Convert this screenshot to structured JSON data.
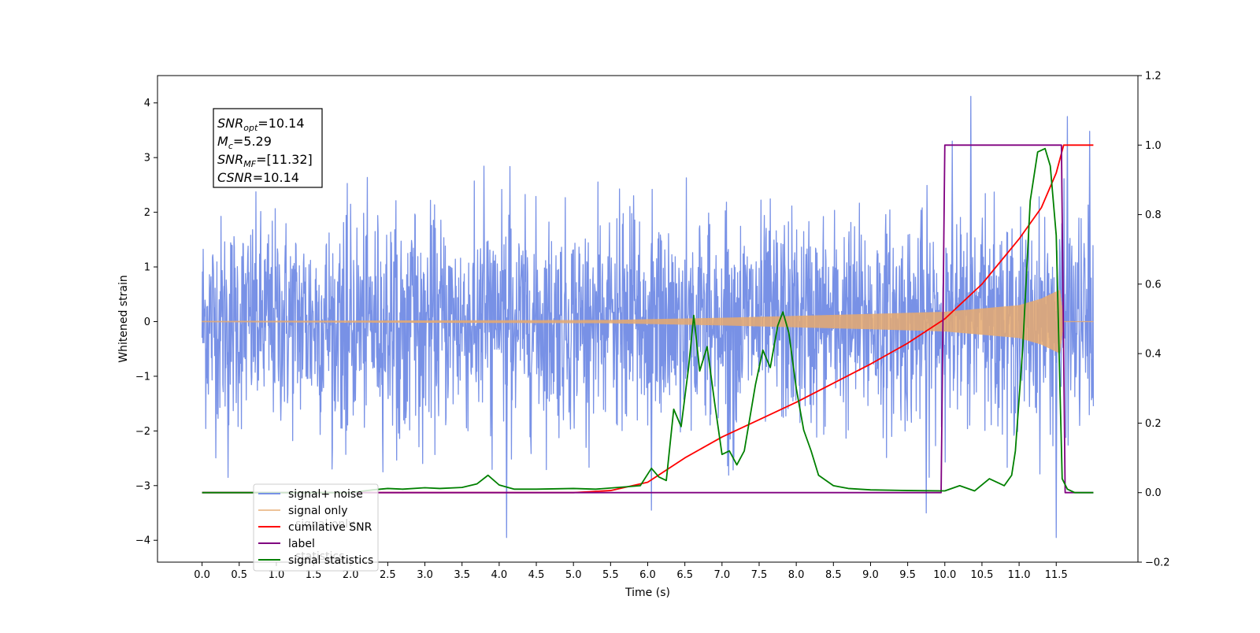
{
  "chart_data": {
    "type": "line",
    "xlabel": "Time (s)",
    "ylabel_left": "Whitened strain",
    "ylabel_right": "",
    "xlim": [
      -0.6,
      12.6
    ],
    "ylim_left": [
      -4.4,
      4.5
    ],
    "ylim_right": [
      -0.2,
      1.2
    ],
    "x_ticks": [
      "0.0",
      "0.5",
      "1.0",
      "1.5",
      "2.0",
      "2.5",
      "3.0",
      "3.5",
      "4.0",
      "4.5",
      "5.0",
      "5.5",
      "6.0",
      "6.5",
      "7.0",
      "7.5",
      "8.0",
      "8.5",
      "9.0",
      "9.5",
      "10.0",
      "10.5",
      "11.0",
      "11.5"
    ],
    "y_ticks_left": [
      "−4",
      "−3",
      "−2",
      "−1",
      "0",
      "1",
      "2",
      "3",
      "4"
    ],
    "y_ticks_right": [
      "−0.2",
      "0.0",
      "0.2",
      "0.4",
      "0.6",
      "0.8",
      "1.0",
      "1.2"
    ],
    "grid": false,
    "legend_position": "lower-left",
    "series": [
      {
        "name": "signal+ noise",
        "axis": "left",
        "color": "#7891e6",
        "style": "noise",
        "x_range": [
          0.0,
          12.0
        ],
        "typical_abs_max": 2.5,
        "outliers": [
          {
            "x": 0.35,
            "y": -2.85
          },
          {
            "x": 4.1,
            "y": -3.95
          },
          {
            "x": 6.05,
            "y": -3.45
          },
          {
            "x": 9.75,
            "y": -3.5
          },
          {
            "x": 10.35,
            "y": 4.12
          },
          {
            "x": 11.5,
            "y": -3.95
          },
          {
            "x": 11.65,
            "y": 3.75
          },
          {
            "x": 11.95,
            "y": 3.48
          },
          {
            "x": 10.1,
            "y": 3.3
          }
        ]
      },
      {
        "name": "signal only",
        "axis": "left",
        "color": "#e6a96e",
        "style": "chirp",
        "x_range": [
          0.0,
          12.0
        ],
        "merger_time": 11.55,
        "envelope": [
          [
            0.0,
            0.01
          ],
          [
            5.5,
            0.03
          ],
          [
            7.0,
            0.07
          ],
          [
            9.0,
            0.14
          ],
          [
            10.0,
            0.18
          ],
          [
            11.0,
            0.3
          ],
          [
            11.3,
            0.42
          ],
          [
            11.5,
            0.55
          ],
          [
            11.55,
            0.58
          ],
          [
            11.6,
            0.0
          ],
          [
            12.0,
            0.0
          ]
        ]
      },
      {
        "name": "cumilative SNR",
        "axis": "right",
        "color": "#ff0000",
        "x": [
          0.0,
          5.0,
          5.5,
          6.0,
          6.5,
          7.0,
          7.5,
          8.0,
          8.5,
          9.0,
          9.5,
          10.0,
          10.5,
          11.0,
          11.3,
          11.5,
          11.6,
          12.0
        ],
        "values": [
          0.0,
          0.0,
          0.006,
          0.03,
          0.1,
          0.16,
          0.21,
          0.26,
          0.315,
          0.37,
          0.43,
          0.5,
          0.6,
          0.73,
          0.82,
          0.92,
          1.0,
          1.0
        ]
      },
      {
        "name": "label",
        "axis": "right",
        "color": "#800080",
        "x": [
          0.0,
          9.95,
          10.0,
          11.57,
          11.62,
          12.0
        ],
        "values": [
          0.0,
          0.0,
          1.0,
          1.0,
          0.0,
          0.0
        ]
      },
      {
        "name": "signal statistics",
        "axis": "right",
        "color": "#008000",
        "x": [
          0.0,
          2.0,
          2.3,
          2.5,
          2.7,
          3.0,
          3.2,
          3.5,
          3.7,
          3.85,
          4.0,
          4.2,
          4.5,
          5.0,
          5.3,
          5.6,
          5.9,
          6.05,
          6.15,
          6.25,
          6.35,
          6.45,
          6.55,
          6.62,
          6.7,
          6.8,
          6.9,
          7.0,
          7.1,
          7.2,
          7.3,
          7.45,
          7.55,
          7.65,
          7.75,
          7.82,
          7.9,
          8.0,
          8.1,
          8.2,
          8.3,
          8.5,
          8.7,
          9.0,
          9.5,
          10.0,
          10.2,
          10.4,
          10.6,
          10.8,
          10.9,
          10.95,
          11.05,
          11.15,
          11.25,
          11.35,
          11.42,
          11.5,
          11.58,
          11.65,
          11.75,
          12.0
        ],
        "values": [
          0.0,
          0.0,
          0.008,
          0.012,
          0.01,
          0.014,
          0.012,
          0.015,
          0.025,
          0.05,
          0.022,
          0.01,
          0.01,
          0.012,
          0.01,
          0.015,
          0.02,
          0.07,
          0.045,
          0.035,
          0.24,
          0.19,
          0.36,
          0.51,
          0.35,
          0.42,
          0.26,
          0.11,
          0.12,
          0.08,
          0.12,
          0.31,
          0.41,
          0.36,
          0.48,
          0.52,
          0.46,
          0.3,
          0.18,
          0.12,
          0.05,
          0.02,
          0.012,
          0.008,
          0.006,
          0.005,
          0.02,
          0.005,
          0.04,
          0.02,
          0.05,
          0.12,
          0.42,
          0.84,
          0.98,
          0.99,
          0.94,
          0.74,
          0.04,
          0.01,
          0.0,
          0.0
        ]
      }
    ],
    "annotation_box": {
      "lines": [
        {
          "base": "SNR",
          "sub": "opt",
          "value": "=10.14"
        },
        {
          "base": "M",
          "sub": "c",
          "value": "=5.29"
        },
        {
          "base": "SNR",
          "sub": "MF",
          "value": "=[11.32]"
        },
        {
          "base": "CSNR",
          "sub": "",
          "value": "=10.14"
        }
      ]
    },
    "legend_overlap_text": [
      "signal only",
      "statistics"
    ]
  }
}
